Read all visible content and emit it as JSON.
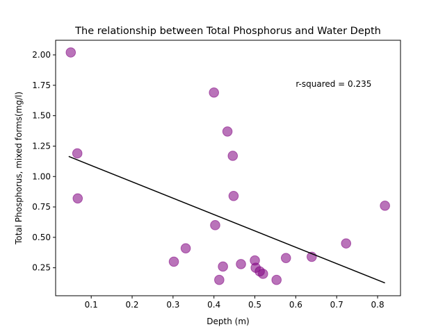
{
  "chart_data": {
    "type": "scatter",
    "title": "The relationship between Total Phosphorus and Water Depth",
    "xlabel": "Depth (m)",
    "ylabel": "Total Phosphorus, mixed forms(mg/l)",
    "xlim": [
      0.013,
      0.856
    ],
    "ylim": [
      0.02,
      2.12
    ],
    "xticks": [
      0.1,
      0.2,
      0.3,
      0.4,
      0.5,
      0.6,
      0.7,
      0.8
    ],
    "xtick_labels": [
      "0.1",
      "0.2",
      "0.3",
      "0.4",
      "0.5",
      "0.6",
      "0.7",
      "0.8"
    ],
    "yticks": [
      0.25,
      0.5,
      0.75,
      1.0,
      1.25,
      1.5,
      1.75,
      2.0
    ],
    "ytick_labels": [
      "0.25",
      "0.50",
      "0.75",
      "1.00",
      "1.25",
      "1.50",
      "1.75",
      "2.00"
    ],
    "grid": false,
    "annotation": {
      "text": "r-squared = 0.235",
      "x": 0.6,
      "y": 1.76
    },
    "marker_color": "#800080",
    "marker_alpha": 0.55,
    "line_color": "#000000",
    "points": [
      {
        "x": 0.05,
        "y": 2.02
      },
      {
        "x": 0.066,
        "y": 1.19
      },
      {
        "x": 0.067,
        "y": 0.82
      },
      {
        "x": 0.302,
        "y": 0.3
      },
      {
        "x": 0.331,
        "y": 0.41
      },
      {
        "x": 0.4,
        "y": 1.69
      },
      {
        "x": 0.403,
        "y": 0.6
      },
      {
        "x": 0.413,
        "y": 0.15
      },
      {
        "x": 0.422,
        "y": 0.26
      },
      {
        "x": 0.433,
        "y": 1.37
      },
      {
        "x": 0.446,
        "y": 1.17
      },
      {
        "x": 0.448,
        "y": 0.84
      },
      {
        "x": 0.466,
        "y": 0.28
      },
      {
        "x": 0.5,
        "y": 0.31
      },
      {
        "x": 0.502,
        "y": 0.25
      },
      {
        "x": 0.512,
        "y": 0.22
      },
      {
        "x": 0.52,
        "y": 0.2
      },
      {
        "x": 0.553,
        "y": 0.15
      },
      {
        "x": 0.576,
        "y": 0.33
      },
      {
        "x": 0.639,
        "y": 0.34
      },
      {
        "x": 0.723,
        "y": 0.45
      },
      {
        "x": 0.818,
        "y": 0.76
      }
    ],
    "fit_line": {
      "x": [
        0.045,
        0.818
      ],
      "y": [
        1.165,
        0.125
      ]
    }
  }
}
